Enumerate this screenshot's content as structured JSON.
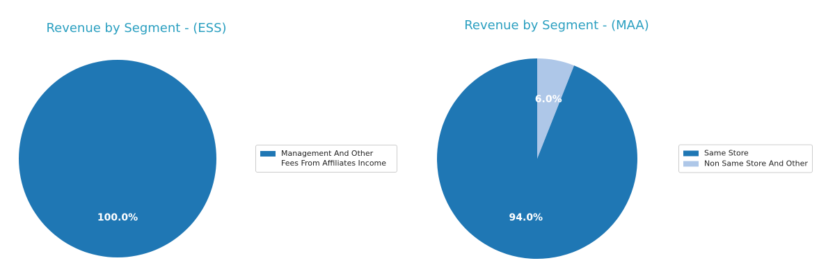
{
  "chart_data": [
    {
      "type": "pie",
      "title": "Revenue by Segment - (ESS)",
      "categories": [
        "Management And Other Fees From Affiliates Income"
      ],
      "values": [
        100
      ],
      "value_labels": [
        "100.0%"
      ],
      "colors": [
        "#1f77b4"
      ],
      "startangle": 90,
      "legend": "right"
    },
    {
      "type": "pie",
      "title": "Revenue by Segment - (MAA)",
      "categories": [
        "Same Store",
        "Non Same Store And Other"
      ],
      "values": [
        94,
        6
      ],
      "value_labels": [
        "94.0%",
        "6.0%"
      ],
      "colors": [
        "#1f77b4",
        "#aec7e8"
      ],
      "startangle": 90,
      "legend": "right"
    }
  ]
}
